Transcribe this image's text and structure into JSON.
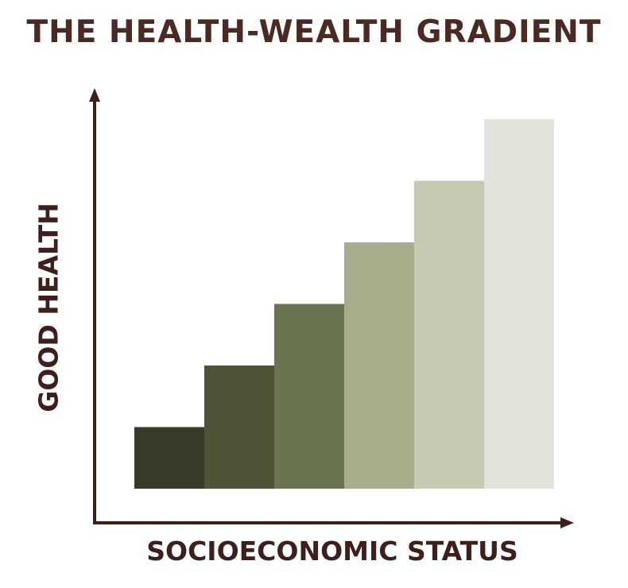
{
  "chart_data": {
    "type": "bar",
    "title": "THE HEALTH-WEALTH GRADIENT",
    "xlabel": "SOCIOECONOMIC STATUS",
    "ylabel": "GOOD HEALTH",
    "categories": [
      "",
      "",
      "",
      "",
      "",
      ""
    ],
    "values": [
      1,
      2,
      3,
      4,
      5,
      6
    ],
    "colors": [
      "#373b27",
      "#4f5439",
      "#6a7450",
      "#a6ae8b",
      "#c5cab3",
      "#e2e4dc"
    ],
    "ylim": [
      0,
      6
    ],
    "grid": false,
    "legend": "none"
  },
  "colors": {
    "title": "#4a2a22",
    "axis": "#3d1f1c",
    "labels": "#3d1f1c"
  }
}
